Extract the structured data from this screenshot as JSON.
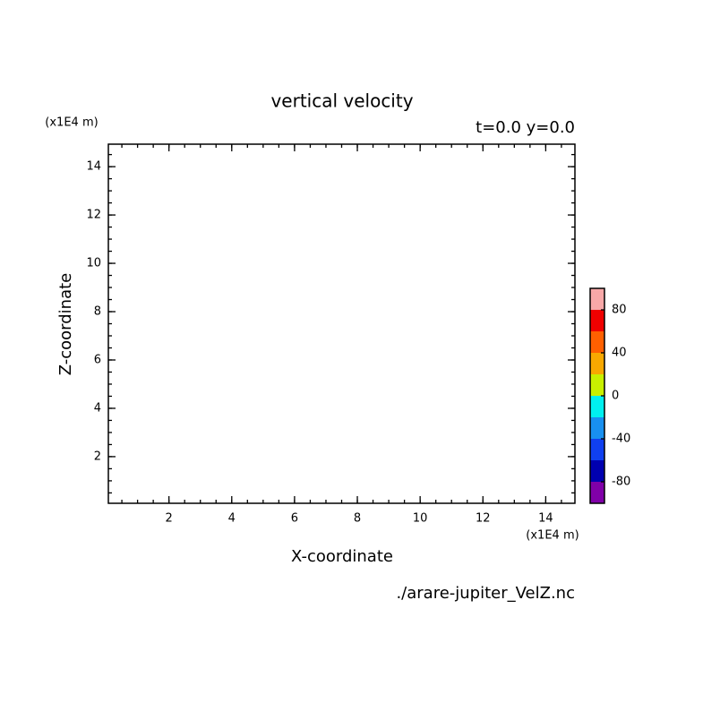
{
  "chart_data": {
    "type": "contour",
    "title": "vertical velocity",
    "subtitle": "t=0.0 y=0.0",
    "xlabel": "X-coordinate",
    "ylabel": "Z-coordinate",
    "x_unit": "(x1E4 m)",
    "y_unit": "(x1E4 m)",
    "xlim": [
      0.07,
      14.93
    ],
    "ylim": [
      0.07,
      14.93
    ],
    "xticks": [
      2,
      4,
      6,
      8,
      10,
      12,
      14
    ],
    "yticks": [
      2,
      4,
      6,
      8,
      10,
      12,
      14
    ],
    "colorbar": {
      "levels": [
        -100,
        -80,
        -60,
        -40,
        -20,
        0,
        20,
        40,
        60,
        80,
        100
      ],
      "colors": [
        "#8000a8",
        "#0000b0",
        "#1040f0",
        "#1890f0",
        "#00f0f0",
        "#c8f000",
        "#f8a800",
        "#ff6000",
        "#f00000",
        "#f8a8a8"
      ],
      "ticks": [
        -80,
        -40,
        0,
        40,
        80
      ]
    },
    "annotation": "./arare-jupiter_VelZ.nc"
  }
}
